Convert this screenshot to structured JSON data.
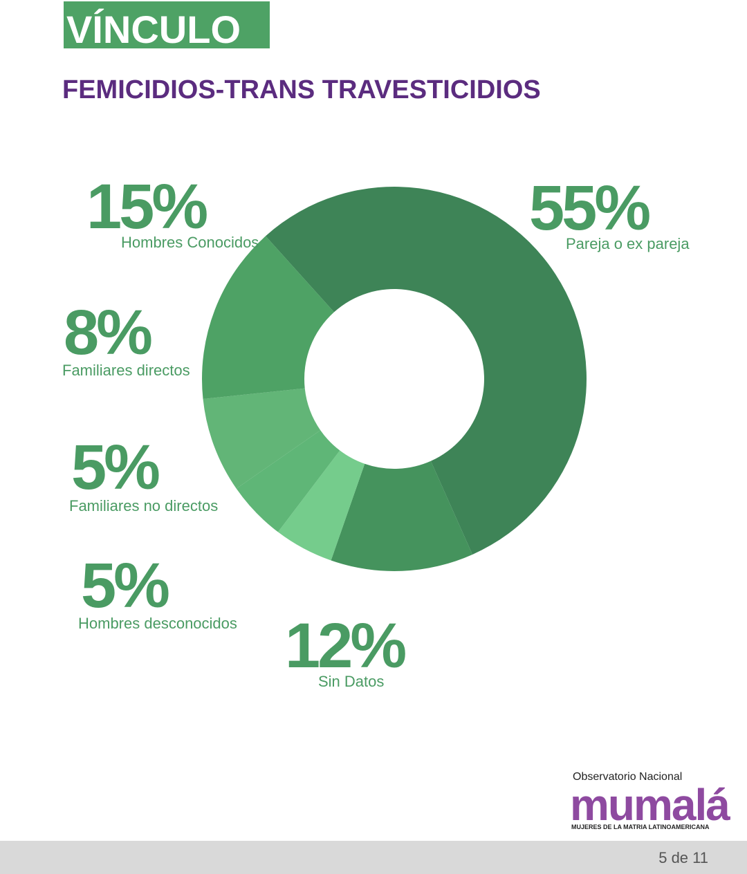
{
  "header": {
    "title": "VÍNCULO",
    "subtitle": "FEMICIDIOS-TRANS TRAVESTICIDIOS"
  },
  "chart_data": {
    "type": "pie",
    "categories": [
      "Pareja o ex pareja",
      "Sin Datos",
      "Hombres desconocidos",
      "Familiares no directos",
      "Familiares directos",
      "Hombres Conocidos"
    ],
    "values": [
      55,
      12,
      5,
      5,
      8,
      15
    ],
    "value_labels": [
      "55%",
      "12%",
      "5%",
      "5%",
      "8%",
      "15%"
    ],
    "colors": [
      "#3e8457",
      "#45935d",
      "#75cc8c",
      "#5fb677",
      "#62b577",
      "#4ea265"
    ]
  },
  "logo": {
    "line1": "Observatorio Nacional",
    "name": "mumalá",
    "tagline": "MUJERES DE LA MATRIA LATINOAMERICANA"
  },
  "footer": {
    "page": "5 de 11"
  }
}
